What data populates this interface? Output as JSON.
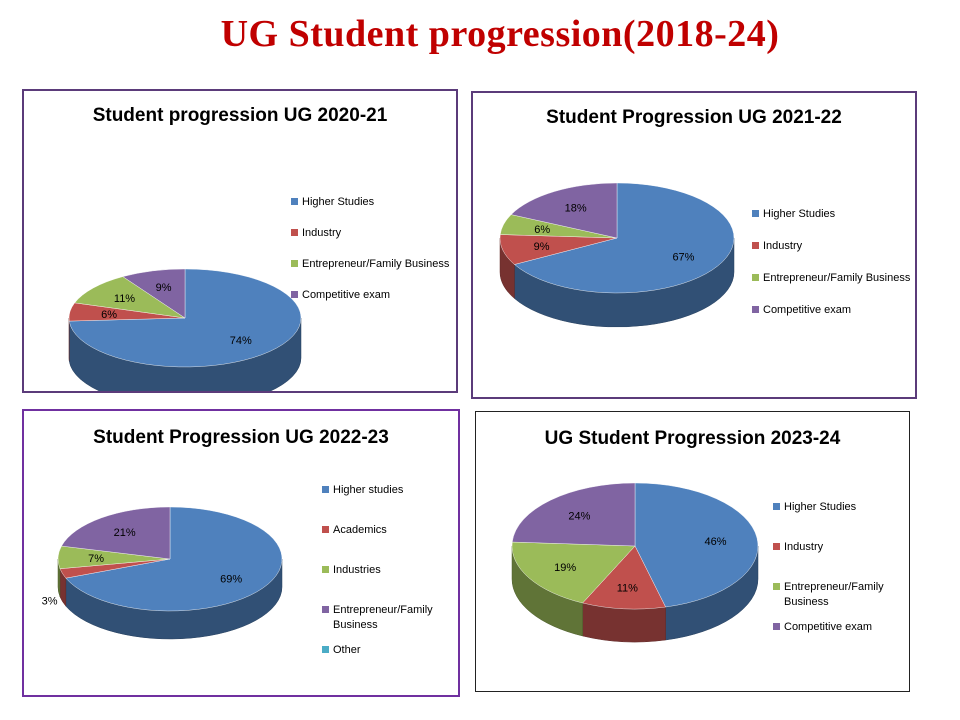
{
  "page": {
    "title": "UG Student  progression(2018-24)"
  },
  "chart_data": [
    {
      "type": "pie",
      "title": "Student progression UG 2020-21",
      "labels": [
        "Higher Studies",
        "Industry",
        "Entrepreneur/Family Business",
        "Competitive exam"
      ],
      "values": [
        74,
        6,
        11,
        9
      ],
      "data_labels": [
        "74%",
        "6%",
        "11%",
        "9%"
      ],
      "colors": [
        "#4f81bd",
        "#c0504d",
        "#9bbb59",
        "#8064a2"
      ],
      "legend_position": "right",
      "border": "#5b3b7a"
    },
    {
      "type": "pie",
      "title": "Student Progression UG 2021-22",
      "labels": [
        "Higher Studies",
        "Industry",
        "Entrepreneur/Family Business",
        "Competitive exam"
      ],
      "values": [
        67,
        9,
        6,
        18
      ],
      "data_labels": [
        "67%",
        "9%",
        "6%",
        "18%"
      ],
      "colors": [
        "#4f81bd",
        "#c0504d",
        "#9bbb59",
        "#8064a2"
      ],
      "legend_position": "right",
      "border": "#5b3b7a"
    },
    {
      "type": "pie",
      "title": "Student Progression UG 2022-23",
      "labels": [
        "Higher studies",
        "Academics",
        "Industries",
        "Entrepreneur/Family Business",
        "Other"
      ],
      "values": [
        69,
        3,
        7,
        21,
        0
      ],
      "data_labels": [
        "69%",
        "3%",
        "7%",
        "21%",
        ""
      ],
      "colors": [
        "#4f81bd",
        "#c0504d",
        "#9bbb59",
        "#8064a2",
        "#4bacc6"
      ],
      "legend_position": "right",
      "border": "#7030a0"
    },
    {
      "type": "pie",
      "title": "UG Student Progression 2023-24",
      "labels": [
        "Higher Studies",
        "Industry",
        "Entrepreneur/Family Business",
        "Competitive exam"
      ],
      "values": [
        46,
        11,
        19,
        24
      ],
      "data_labels": [
        "46%",
        "11%",
        "19%",
        "24%"
      ],
      "colors": [
        "#4f81bd",
        "#c0504d",
        "#9bbb59",
        "#8064a2"
      ],
      "legend_position": "right",
      "border": "#222222"
    }
  ]
}
